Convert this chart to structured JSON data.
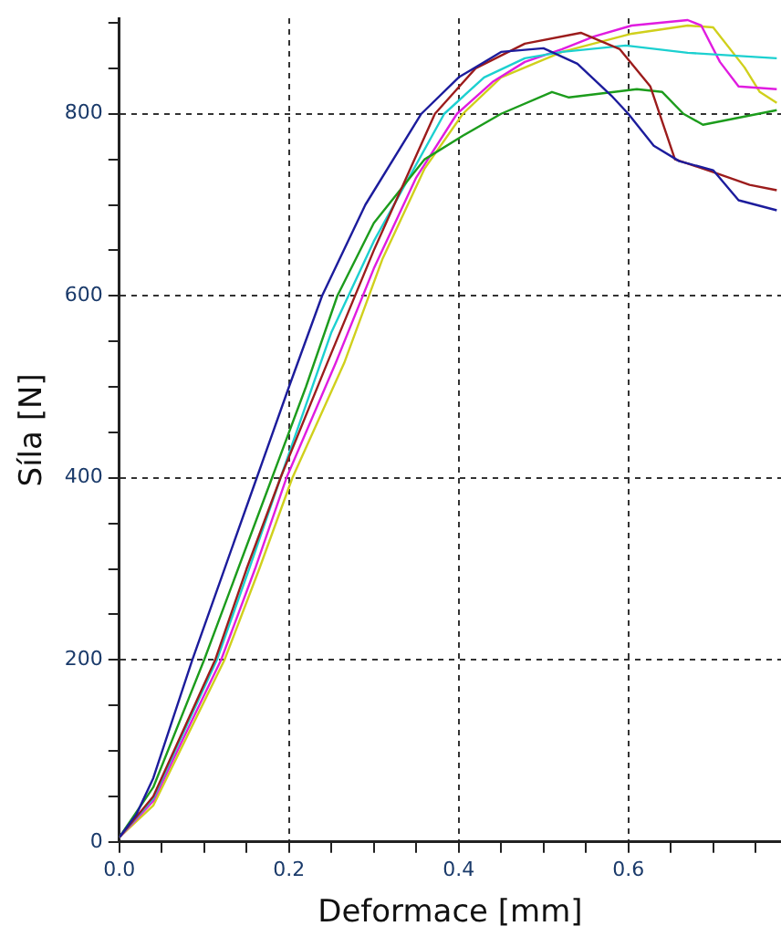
{
  "chart_data": {
    "type": "line",
    "xlabel": "Deformace [mm]",
    "ylabel": "Síla [N]",
    "xlim": [
      0,
      0.78
    ],
    "ylim": [
      0,
      905
    ],
    "xticks": [
      {
        "value": 0,
        "label": "0.0"
      },
      {
        "value": 0.05,
        "label": null
      },
      {
        "value": 0.1,
        "label": null
      },
      {
        "value": 0.15,
        "label": null
      },
      {
        "value": 0.2,
        "label": "0.2"
      },
      {
        "value": 0.25,
        "label": null
      },
      {
        "value": 0.3,
        "label": null
      },
      {
        "value": 0.35,
        "label": null
      },
      {
        "value": 0.4,
        "label": "0.4"
      },
      {
        "value": 0.45,
        "label": null
      },
      {
        "value": 0.5,
        "label": null
      },
      {
        "value": 0.55,
        "label": null
      },
      {
        "value": 0.6,
        "label": "0.6"
      },
      {
        "value": 0.65,
        "label": null
      },
      {
        "value": 0.7,
        "label": null
      },
      {
        "value": 0.75,
        "label": null
      }
    ],
    "yticks": [
      0,
      {
        "value": 50,
        "label": null
      },
      {
        "value": 100,
        "label": null
      },
      {
        "value": 150,
        "label": null
      },
      200,
      {
        "value": 250,
        "label": null
      },
      {
        "value": 300,
        "label": null
      },
      {
        "value": 350,
        "label": null
      },
      400,
      {
        "value": 450,
        "label": null
      },
      {
        "value": 500,
        "label": null
      },
      {
        "value": 550,
        "label": null
      },
      600,
      {
        "value": 650,
        "label": null
      },
      {
        "value": 700,
        "label": null
      },
      {
        "value": 750,
        "label": null
      },
      800,
      {
        "value": 850,
        "label": null
      },
      {
        "value": 900,
        "label": null
      }
    ],
    "grid": true,
    "legend": false,
    "marker": "none",
    "line_style": "solid",
    "series": [
      {
        "color": "#1c1c9c",
        "x": [
          0,
          0.02,
          0.04,
          0.086,
          0.124,
          0.162,
          0.2,
          0.239,
          0.29,
          0.356,
          0.4,
          0.45,
          0.5,
          0.54,
          0.58,
          0.6,
          0.63,
          0.66,
          0.7,
          0.73,
          0.775
        ],
        "values": [
          5,
          30,
          70,
          200,
          300,
          400,
          500,
          600,
          700,
          800,
          840,
          868,
          872,
          855,
          820,
          800,
          765,
          748,
          738,
          705,
          694
        ]
      },
      {
        "color": "#9c1c1c",
        "x": [
          0,
          0.04,
          0.113,
          0.15,
          0.19,
          0.245,
          0.3,
          0.372,
          0.42,
          0.478,
          0.544,
          0.59,
          0.626,
          0.655,
          0.7,
          0.743,
          0.775
        ],
        "values": [
          5,
          50,
          200,
          300,
          400,
          526,
          650,
          800,
          850,
          877,
          889,
          871,
          830,
          750,
          736,
          722,
          716
        ]
      },
      {
        "color": "#1c9c1c",
        "x": [
          0,
          0.04,
          0.1,
          0.14,
          0.18,
          0.22,
          0.257,
          0.3,
          0.36,
          0.405,
          0.45,
          0.51,
          0.53,
          0.61,
          0.64,
          0.665,
          0.688,
          0.775
        ],
        "values": [
          5,
          60,
          200,
          300,
          400,
          500,
          600,
          680,
          750,
          776,
          800,
          824,
          818,
          827,
          824,
          800,
          788,
          804
        ]
      },
      {
        "color": "#1cd0d0",
        "x": [
          0,
          0.04,
          0.115,
          0.153,
          0.19,
          0.25,
          0.3,
          0.383,
          0.43,
          0.478,
          0.522,
          0.597,
          0.67,
          0.775
        ],
        "values": [
          5,
          48,
          200,
          300,
          400,
          560,
          660,
          800,
          840,
          861,
          868,
          875,
          867,
          861
        ]
      },
      {
        "color": "#e01ce0",
        "x": [
          0,
          0.04,
          0.12,
          0.16,
          0.197,
          0.255,
          0.3,
          0.35,
          0.398,
          0.44,
          0.478,
          0.522,
          0.56,
          0.604,
          0.67,
          0.686,
          0.708,
          0.73,
          0.775
        ],
        "values": [
          5,
          45,
          200,
          300,
          400,
          526,
          630,
          730,
          800,
          835,
          857,
          871,
          885,
          897,
          903,
          897,
          857,
          830,
          827
        ]
      },
      {
        "color": "#d0d01c",
        "x": [
          0,
          0.04,
          0.124,
          0.165,
          0.204,
          0.265,
          0.31,
          0.36,
          0.405,
          0.45,
          0.522,
          0.604,
          0.67,
          0.7,
          0.737,
          0.755,
          0.775
        ],
        "values": [
          5,
          40,
          200,
          300,
          400,
          526,
          640,
          740,
          800,
          840,
          868,
          888,
          897,
          895,
          851,
          824,
          812
        ]
      }
    ]
  }
}
